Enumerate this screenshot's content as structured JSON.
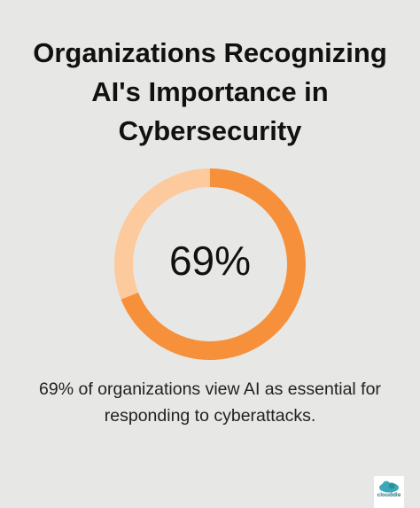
{
  "chart_data": {
    "type": "donut",
    "title": "Organizations Recognizing AI's Importance in Cybersecurity",
    "values": [
      69,
      31
    ],
    "value_labels": [
      "69%",
      null
    ],
    "colors": [
      "#f7903b",
      "#fcca9c"
    ],
    "caption": "69% of organizations view AI as essential for responding to cyberattacks.",
    "logo": "clouddle"
  }
}
